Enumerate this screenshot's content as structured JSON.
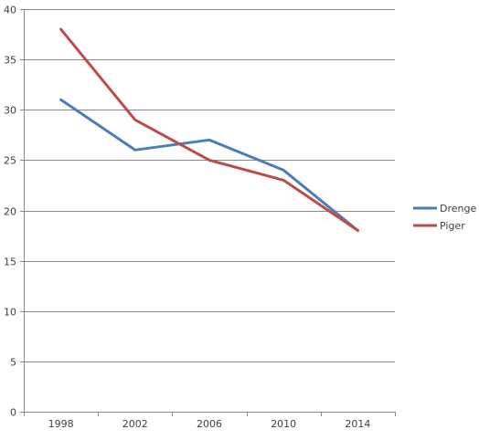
{
  "chart_data": {
    "type": "line",
    "categories": [
      "1998",
      "2002",
      "2006",
      "2010",
      "2014"
    ],
    "series": [
      {
        "name": "Drenge",
        "values": [
          31,
          26,
          27,
          24,
          18
        ],
        "color": "#4a7ebb"
      },
      {
        "name": "Piger",
        "values": [
          38,
          29,
          25,
          23,
          18
        ],
        "color": "#be4b48"
      }
    ],
    "ylim": [
      0,
      40
    ],
    "yticks": [
      "0",
      "5",
      "10",
      "15",
      "20",
      "25",
      "30",
      "35",
      "40"
    ],
    "grid": true,
    "legend_position": "right",
    "title": "",
    "xlabel": "",
    "ylabel": ""
  }
}
